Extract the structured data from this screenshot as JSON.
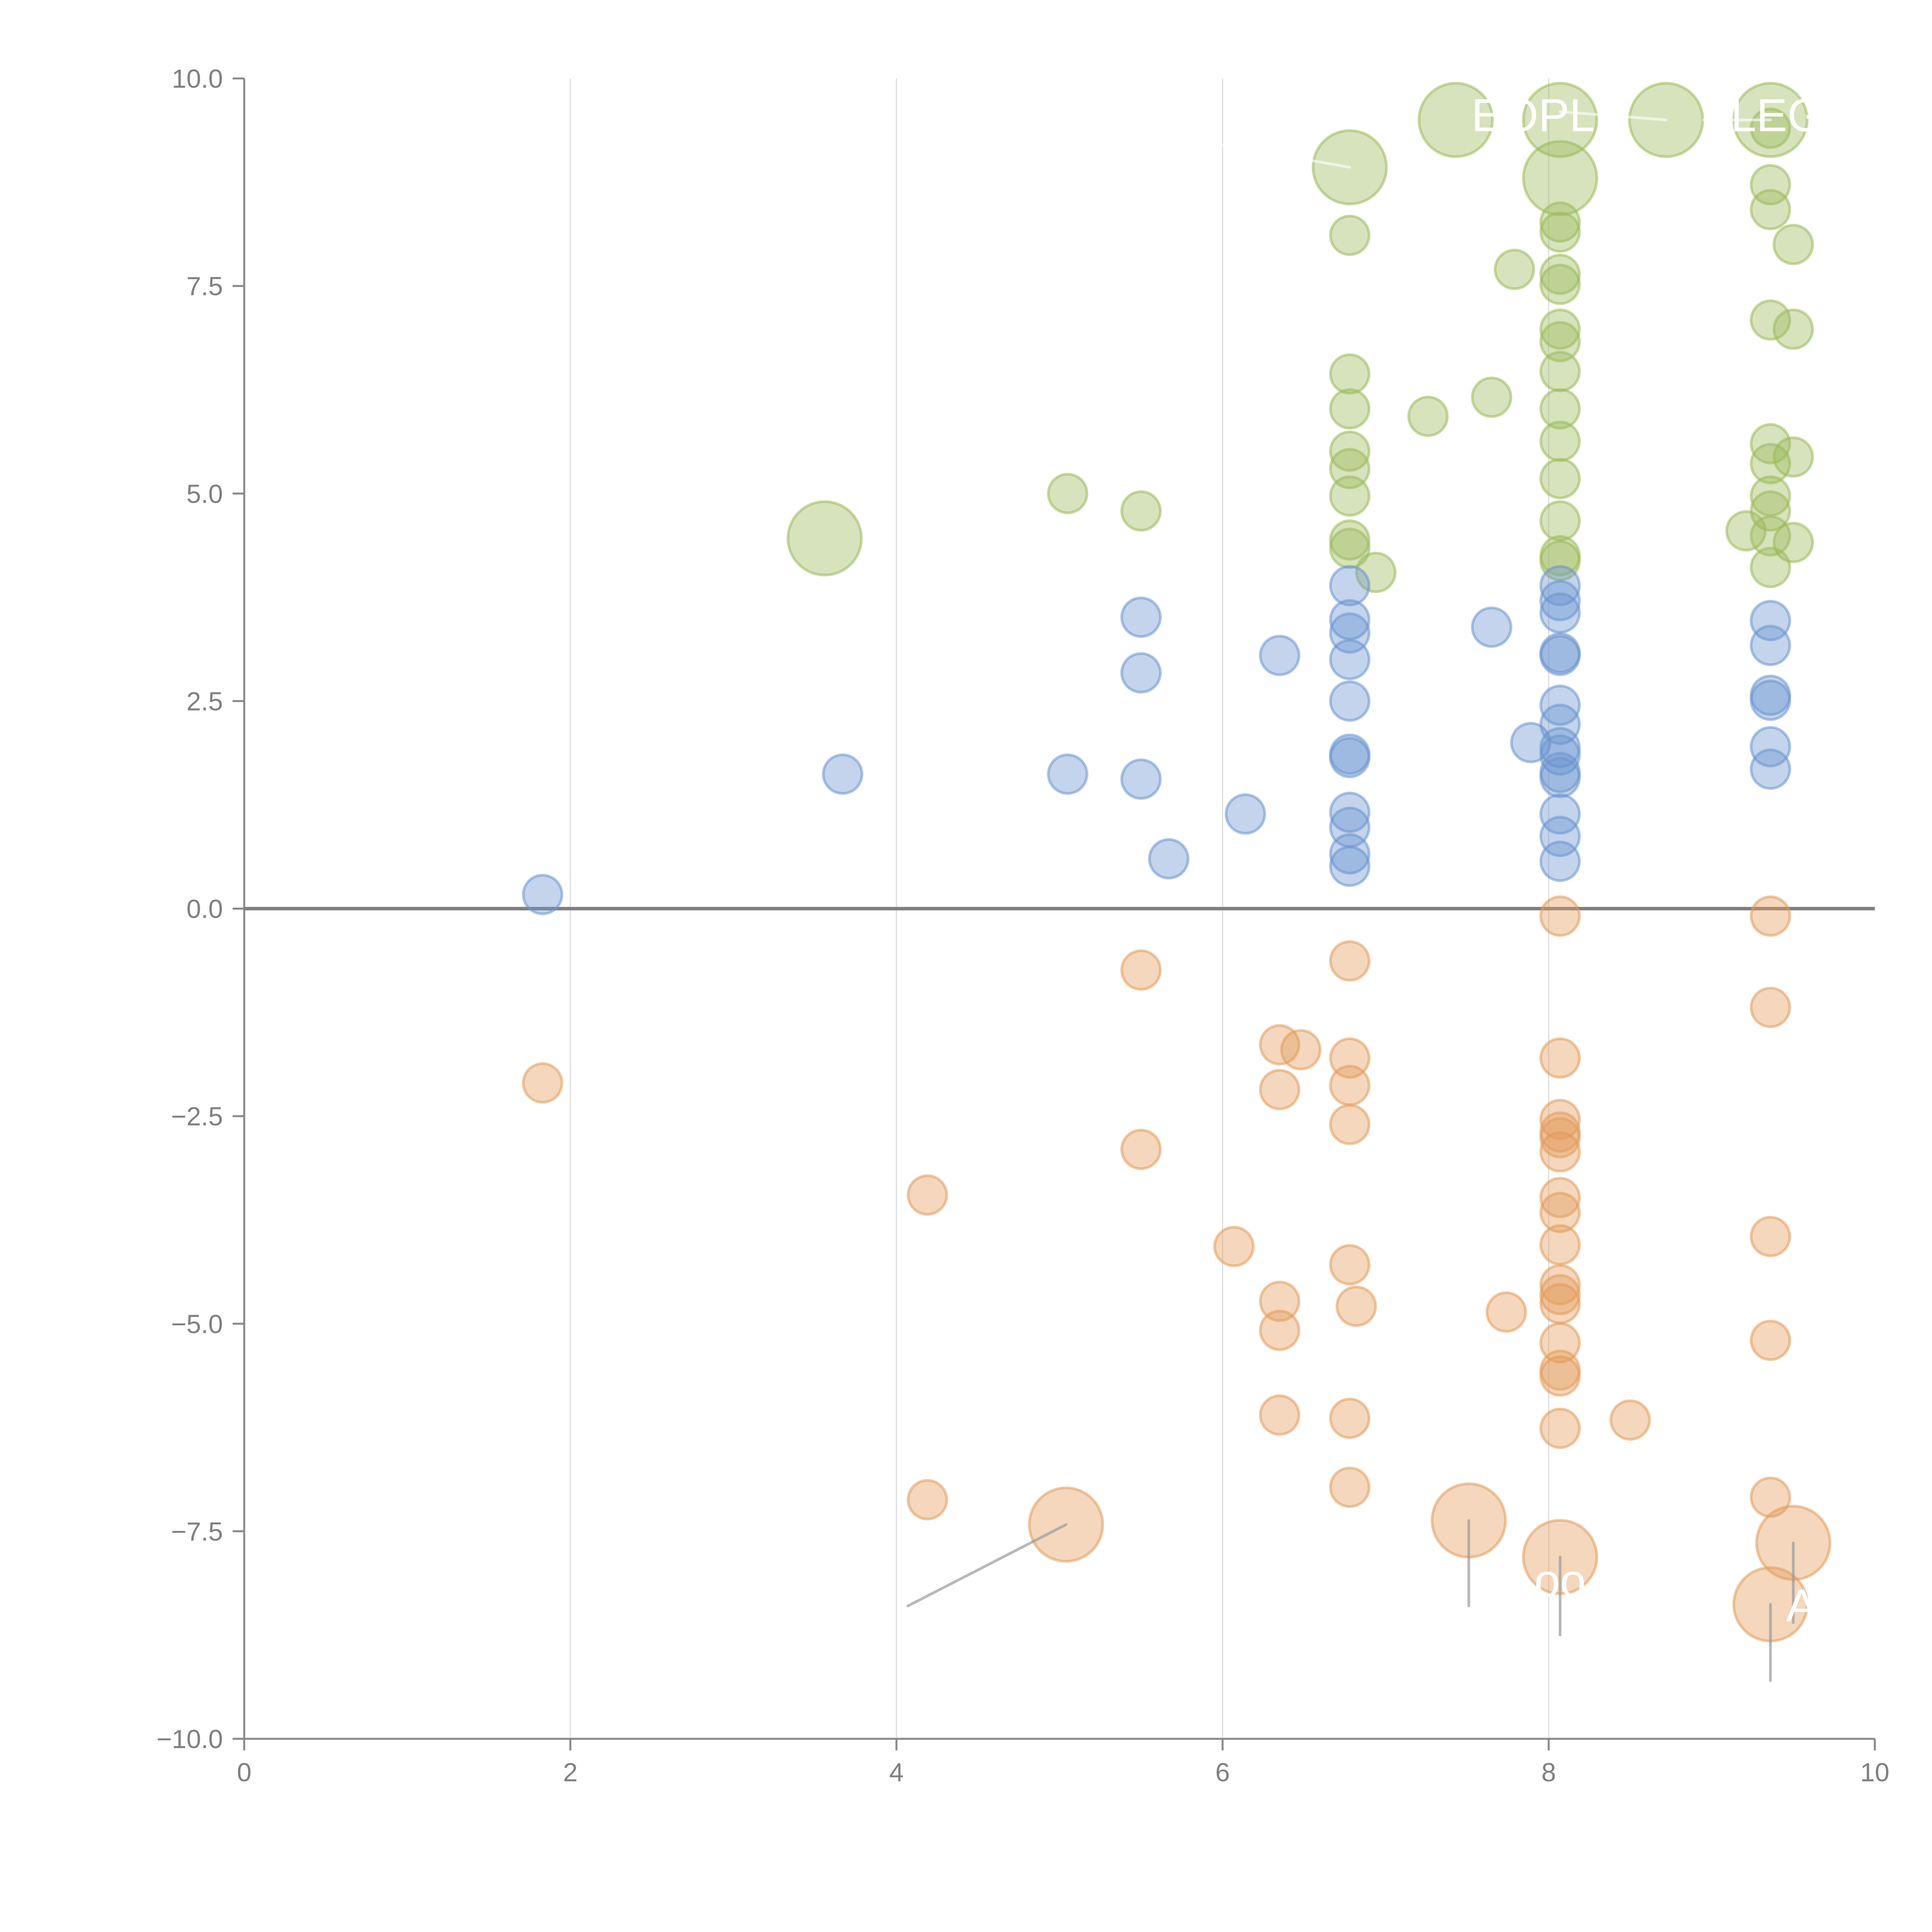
{
  "chart_data": {
    "type": "scatter",
    "title": "",
    "xlabel": "",
    "ylabel": "",
    "xlim": [
      0,
      10
    ],
    "ylim": [
      -10,
      10
    ],
    "x_ticks": [
      "0",
      "2",
      "4",
      "6",
      "8",
      "10"
    ],
    "y_ticks": [
      "10.0",
      "7.5",
      "5.0",
      "2.5",
      "0.0",
      "−2.5",
      "−5.0",
      "−7.5",
      "−10.0"
    ],
    "grid": "vertical",
    "legend": "none",
    "series": [
      {
        "name": "green",
        "color": "#9aba59",
        "points": [
          {
            "x": 6.78,
            "y": 8.93,
            "big": true
          },
          {
            "x": 7.43,
            "y": 9.5,
            "big": true
          },
          {
            "x": 8.07,
            "y": 9.5,
            "big": true
          },
          {
            "x": 8.72,
            "y": 9.5,
            "big": true
          },
          {
            "x": 9.36,
            "y": 9.5,
            "big": true
          },
          {
            "x": 8.07,
            "y": 8.8,
            "big": true
          },
          {
            "x": 3.56,
            "y": 4.46,
            "big": true
          },
          {
            "x": 6.78,
            "y": 8.11
          },
          {
            "x": 9.36,
            "y": 9.4
          },
          {
            "x": 9.36,
            "y": 8.72
          },
          {
            "x": 9.36,
            "y": 8.42
          },
          {
            "x": 9.5,
            "y": 8.0
          },
          {
            "x": 7.79,
            "y": 7.7
          },
          {
            "x": 8.07,
            "y": 8.27
          },
          {
            "x": 8.07,
            "y": 8.15
          },
          {
            "x": 8.07,
            "y": 7.64
          },
          {
            "x": 8.07,
            "y": 7.52
          },
          {
            "x": 9.36,
            "y": 7.09
          },
          {
            "x": 9.5,
            "y": 6.98
          },
          {
            "x": 6.78,
            "y": 6.44
          },
          {
            "x": 6.78,
            "y": 6.02
          },
          {
            "x": 7.26,
            "y": 5.93
          },
          {
            "x": 7.65,
            "y": 6.16
          },
          {
            "x": 8.07,
            "y": 6.98
          },
          {
            "x": 8.07,
            "y": 6.83
          },
          {
            "x": 8.07,
            "y": 6.47
          },
          {
            "x": 8.07,
            "y": 6.02
          },
          {
            "x": 8.07,
            "y": 5.63
          },
          {
            "x": 6.78,
            "y": 5.51
          },
          {
            "x": 6.78,
            "y": 5.3
          },
          {
            "x": 6.78,
            "y": 4.97
          },
          {
            "x": 6.78,
            "y": 4.44
          },
          {
            "x": 6.78,
            "y": 4.34
          },
          {
            "x": 6.94,
            "y": 4.05
          },
          {
            "x": 8.07,
            "y": 5.18
          },
          {
            "x": 8.07,
            "y": 4.67
          },
          {
            "x": 8.07,
            "y": 4.25
          },
          {
            "x": 8.07,
            "y": 4.19
          },
          {
            "x": 9.36,
            "y": 5.6
          },
          {
            "x": 9.36,
            "y": 5.36
          },
          {
            "x": 9.5,
            "y": 5.44
          },
          {
            "x": 9.36,
            "y": 4.97
          },
          {
            "x": 9.36,
            "y": 4.79
          },
          {
            "x": 9.21,
            "y": 4.55
          },
          {
            "x": 9.36,
            "y": 4.49
          },
          {
            "x": 9.5,
            "y": 4.41
          },
          {
            "x": 9.36,
            "y": 4.11
          },
          {
            "x": 5.05,
            "y": 5.0
          },
          {
            "x": 5.5,
            "y": 4.79
          }
        ]
      },
      {
        "name": "blue",
        "color": "#6a93cf",
        "points": [
          {
            "x": 1.83,
            "y": 0.17
          },
          {
            "x": 3.67,
            "y": 1.62
          },
          {
            "x": 5.05,
            "y": 1.62
          },
          {
            "x": 5.5,
            "y": 1.56
          },
          {
            "x": 5.5,
            "y": 2.84
          },
          {
            "x": 5.5,
            "y": 3.51
          },
          {
            "x": 5.67,
            "y": 0.6
          },
          {
            "x": 6.14,
            "y": 1.14
          },
          {
            "x": 6.35,
            "y": 3.05
          },
          {
            "x": 6.78,
            "y": 3.89
          },
          {
            "x": 6.78,
            "y": 3.48
          },
          {
            "x": 6.78,
            "y": 3.32
          },
          {
            "x": 6.78,
            "y": 3.0
          },
          {
            "x": 6.78,
            "y": 2.5
          },
          {
            "x": 6.78,
            "y": 1.86
          },
          {
            "x": 6.78,
            "y": 1.82
          },
          {
            "x": 6.78,
            "y": 1.16
          },
          {
            "x": 6.78,
            "y": 0.98
          },
          {
            "x": 6.78,
            "y": 0.66
          },
          {
            "x": 6.78,
            "y": 0.51
          },
          {
            "x": 7.65,
            "y": 3.39
          },
          {
            "x": 7.89,
            "y": 2.0
          },
          {
            "x": 8.07,
            "y": 3.89
          },
          {
            "x": 8.07,
            "y": 3.71
          },
          {
            "x": 8.07,
            "y": 3.56
          },
          {
            "x": 8.07,
            "y": 3.08
          },
          {
            "x": 8.07,
            "y": 3.05
          },
          {
            "x": 8.07,
            "y": 2.45
          },
          {
            "x": 8.07,
            "y": 2.22
          },
          {
            "x": 8.07,
            "y": 1.94
          },
          {
            "x": 8.07,
            "y": 1.85
          },
          {
            "x": 8.07,
            "y": 1.64
          },
          {
            "x": 8.07,
            "y": 1.58
          },
          {
            "x": 8.07,
            "y": 1.14
          },
          {
            "x": 8.07,
            "y": 0.87
          },
          {
            "x": 8.07,
            "y": 0.57
          },
          {
            "x": 9.36,
            "y": 3.47
          },
          {
            "x": 9.36,
            "y": 3.17
          },
          {
            "x": 9.36,
            "y": 2.57
          },
          {
            "x": 9.36,
            "y": 2.51
          },
          {
            "x": 9.36,
            "y": 1.95
          },
          {
            "x": 9.36,
            "y": 1.68
          }
        ]
      },
      {
        "name": "orange",
        "color": "#e49a5a",
        "points": [
          {
            "x": 5.04,
            "y": -7.42,
            "big": true
          },
          {
            "x": 7.51,
            "y": -7.37,
            "big": true
          },
          {
            "x": 8.07,
            "y": -7.81,
            "big": true
          },
          {
            "x": 9.5,
            "y": -7.64,
            "big": true
          },
          {
            "x": 9.36,
            "y": -8.38,
            "big": true
          },
          {
            "x": 1.83,
            "y": -2.1
          },
          {
            "x": 4.19,
            "y": -3.45
          },
          {
            "x": 4.19,
            "y": -7.12
          },
          {
            "x": 5.5,
            "y": -0.74
          },
          {
            "x": 5.5,
            "y": -2.9
          },
          {
            "x": 6.07,
            "y": -4.07
          },
          {
            "x": 6.35,
            "y": -1.64
          },
          {
            "x": 6.48,
            "y": -1.7
          },
          {
            "x": 6.35,
            "y": -2.18
          },
          {
            "x": 6.35,
            "y": -4.73
          },
          {
            "x": 6.35,
            "y": -5.08
          },
          {
            "x": 6.35,
            "y": -6.1
          },
          {
            "x": 6.78,
            "y": -0.63
          },
          {
            "x": 6.78,
            "y": -1.8
          },
          {
            "x": 6.78,
            "y": -2.13
          },
          {
            "x": 6.78,
            "y": -2.6
          },
          {
            "x": 6.78,
            "y": -4.29
          },
          {
            "x": 6.82,
            "y": -4.79
          },
          {
            "x": 6.78,
            "y": -6.14
          },
          {
            "x": 6.78,
            "y": -6.97
          },
          {
            "x": 7.74,
            "y": -4.86
          },
          {
            "x": 8.07,
            "y": -0.09
          },
          {
            "x": 8.07,
            "y": -1.8
          },
          {
            "x": 8.07,
            "y": -2.54
          },
          {
            "x": 8.07,
            "y": -2.69
          },
          {
            "x": 8.07,
            "y": -2.76
          },
          {
            "x": 8.07,
            "y": -2.93
          },
          {
            "x": 8.07,
            "y": -3.48
          },
          {
            "x": 8.07,
            "y": -3.66
          },
          {
            "x": 8.07,
            "y": -4.05
          },
          {
            "x": 8.07,
            "y": -4.53
          },
          {
            "x": 8.07,
            "y": -4.65
          },
          {
            "x": 8.07,
            "y": -4.76
          },
          {
            "x": 8.07,
            "y": -5.23
          },
          {
            "x": 8.07,
            "y": -5.56
          },
          {
            "x": 8.07,
            "y": -5.63
          },
          {
            "x": 8.07,
            "y": -6.26
          },
          {
            "x": 8.5,
            "y": -6.16
          },
          {
            "x": 9.36,
            "y": -0.09
          },
          {
            "x": 9.36,
            "y": -1.19
          },
          {
            "x": 9.36,
            "y": -3.95
          },
          {
            "x": 9.36,
            "y": -5.2
          },
          {
            "x": 9.36,
            "y": -7.09
          }
        ]
      }
    ],
    "annotations": [
      {
        "text": "EOPLE",
        "x": 8.0,
        "y": 9.55
      },
      {
        "text": "LEG",
        "x": 9.4,
        "y": 9.55
      },
      {
        "text": "oo",
        "x": 8.07,
        "y": -8.1
      },
      {
        "text": "A",
        "x": 9.55,
        "y": -8.4
      }
    ],
    "leader_lines": [
      {
        "from": [
          5.04,
          -7.42
        ],
        "to": [
          4.07,
          -8.4
        ]
      },
      {
        "from": [
          7.51,
          -7.37
        ],
        "to": [
          7.51,
          -8.4
        ]
      },
      {
        "from": [
          8.07,
          -7.81
        ],
        "to": [
          8.07,
          -8.75
        ]
      },
      {
        "from": [
          9.5,
          -7.64
        ],
        "to": [
          9.5,
          -8.6
        ]
      },
      {
        "from": [
          9.36,
          -8.38
        ],
        "to": [
          9.36,
          -9.3
        ]
      },
      {
        "from": [
          6.78,
          8.93
        ],
        "to": [
          6.0,
          9.2
        ]
      },
      {
        "from": [
          8.72,
          9.5
        ],
        "to": [
          8.07,
          9.6
        ]
      },
      {
        "from": [
          9.36,
          9.5
        ],
        "to": [
          8.95,
          9.5
        ]
      }
    ]
  }
}
